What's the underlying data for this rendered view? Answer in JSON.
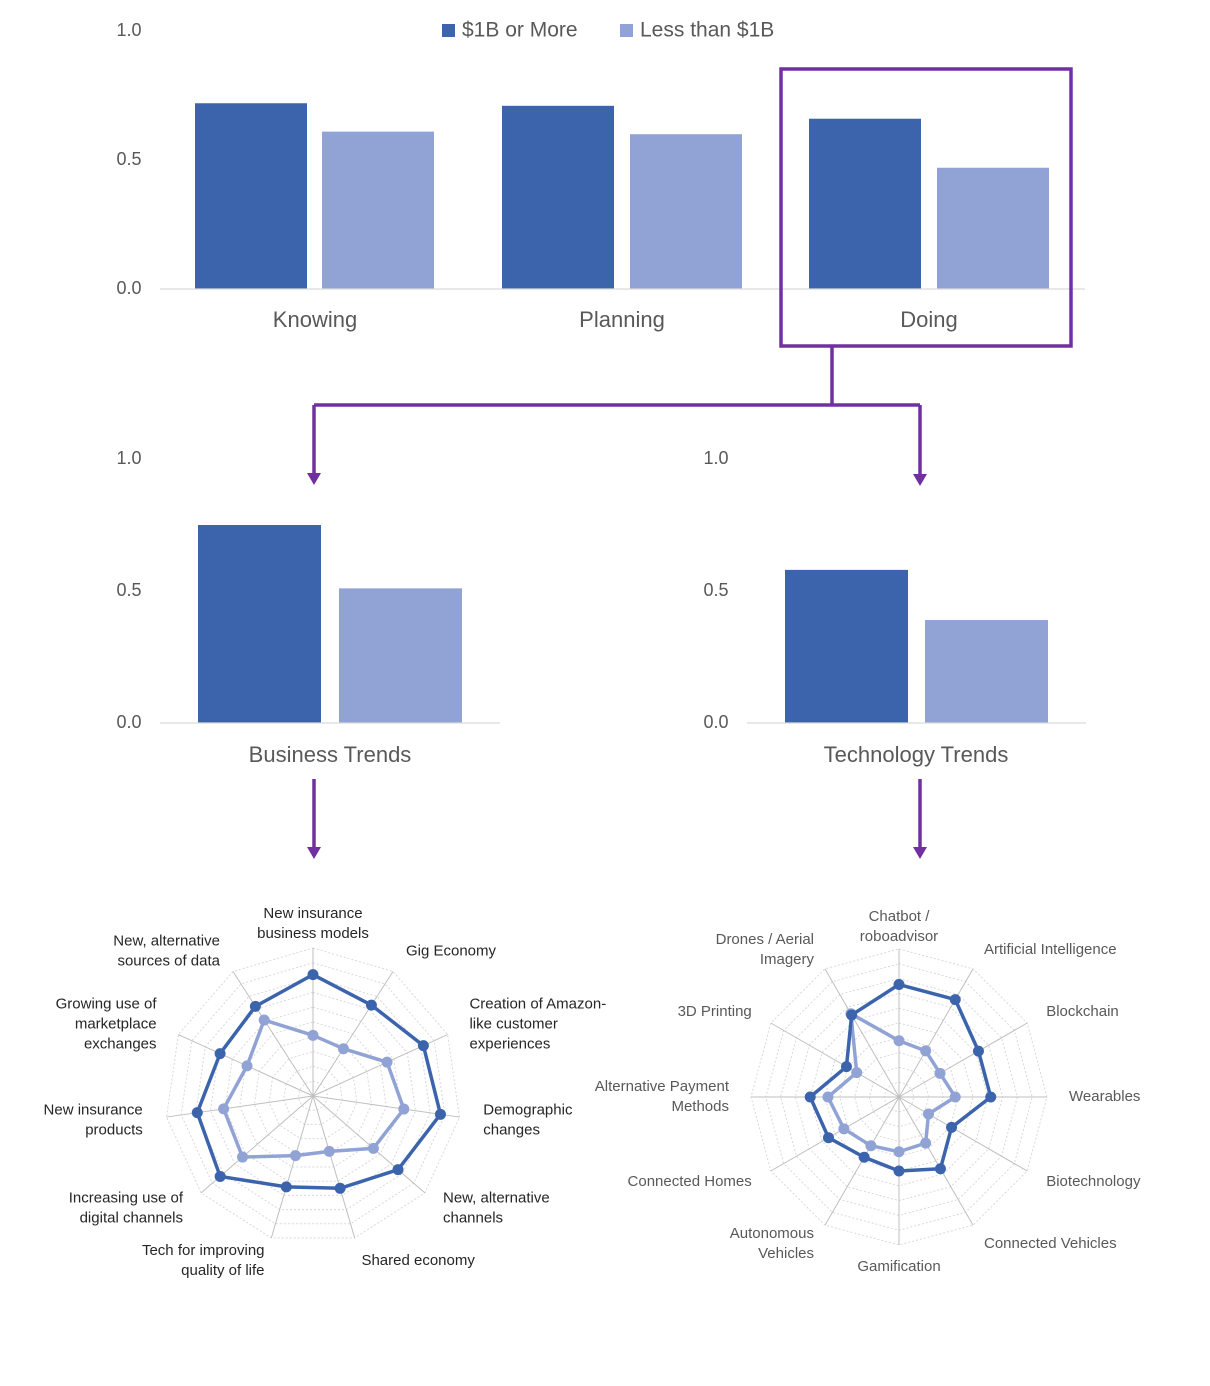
{
  "colors": {
    "series_large": "#3c64ad",
    "series_small": "#91a3d5",
    "highlight": "#7030a0",
    "axis_text": "#595959",
    "radar_label": "#262626",
    "grid": "#d9d9d9"
  },
  "legend": [
    "$1B or More",
    "Less than $1B"
  ],
  "chart_data": [
    {
      "type": "bar",
      "categories": [
        "Knowing",
        "Planning",
        "Doing"
      ],
      "series": [
        {
          "name": "$1B or More",
          "values": [
            0.72,
            0.71,
            0.66
          ]
        },
        {
          "name": "Less than $1B",
          "values": [
            0.61,
            0.6,
            0.47
          ]
        }
      ],
      "ylim": [
        0,
        1.0
      ],
      "yticks": [
        "0.0",
        "0.5",
        "1.0"
      ],
      "highlighted_category": "Doing",
      "legend_position": "top"
    },
    {
      "type": "bar",
      "categories": [
        "Business Trends"
      ],
      "series": [
        {
          "name": "$1B or More",
          "values": [
            0.75
          ]
        },
        {
          "name": "Less than $1B",
          "values": [
            0.51
          ]
        }
      ],
      "ylim": [
        0,
        1.0
      ],
      "yticks": [
        "0.0",
        "0.5",
        "1.0"
      ]
    },
    {
      "type": "bar",
      "categories": [
        "Technology Trends"
      ],
      "series": [
        {
          "name": "$1B or More",
          "values": [
            0.58
          ]
        },
        {
          "name": "Less than $1B",
          "values": [
            0.39
          ]
        }
      ],
      "ylim": [
        0,
        1.0
      ],
      "yticks": [
        "0.0",
        "0.5",
        "1.0"
      ]
    },
    {
      "type": "radar",
      "axes": [
        "New insurance\nbusiness models",
        "Gig Economy",
        "Creation of Amazon-\nlike customer\nexperiences",
        "Demographic\nchanges",
        "New, alternative\nchannels",
        "Shared economy",
        "Tech for improving\nquality of life",
        "Increasing use of\ndigital channels",
        "New insurance\nproducts",
        "Growing use of\nmarketplace\nexchanges",
        "New, alternative\nsources of data"
      ],
      "series": [
        {
          "name": "$1B or More",
          "values": [
            0.82,
            0.73,
            0.82,
            0.87,
            0.76,
            0.65,
            0.64,
            0.83,
            0.79,
            0.69,
            0.72
          ]
        },
        {
          "name": "Less than $1B",
          "values": [
            0.41,
            0.38,
            0.55,
            0.62,
            0.54,
            0.39,
            0.42,
            0.63,
            0.61,
            0.49,
            0.61
          ]
        }
      ],
      "rmax": 1.0,
      "gridlines": 10
    },
    {
      "type": "radar",
      "axes": [
        "Chatbot /\nroboadvisor",
        "Artificial Intelligence",
        "Blockchain",
        "Wearables",
        "Biotechnology",
        "Connected Vehicles",
        "Gamification",
        "Autonomous\nVehicles",
        "Connected Homes",
        "Alternative Payment\nMethods",
        "3D Printing",
        "Drones / Aerial\nImagery"
      ],
      "series": [
        {
          "name": "$1B or More",
          "values": [
            0.76,
            0.76,
            0.62,
            0.62,
            0.41,
            0.56,
            0.5,
            0.47,
            0.55,
            0.6,
            0.41,
            0.64
          ]
        },
        {
          "name": "Less than $1B",
          "values": [
            0.38,
            0.36,
            0.32,
            0.38,
            0.23,
            0.36,
            0.37,
            0.38,
            0.43,
            0.48,
            0.33,
            0.65
          ]
        }
      ],
      "rmax": 1.0,
      "gridlines": 10
    }
  ]
}
